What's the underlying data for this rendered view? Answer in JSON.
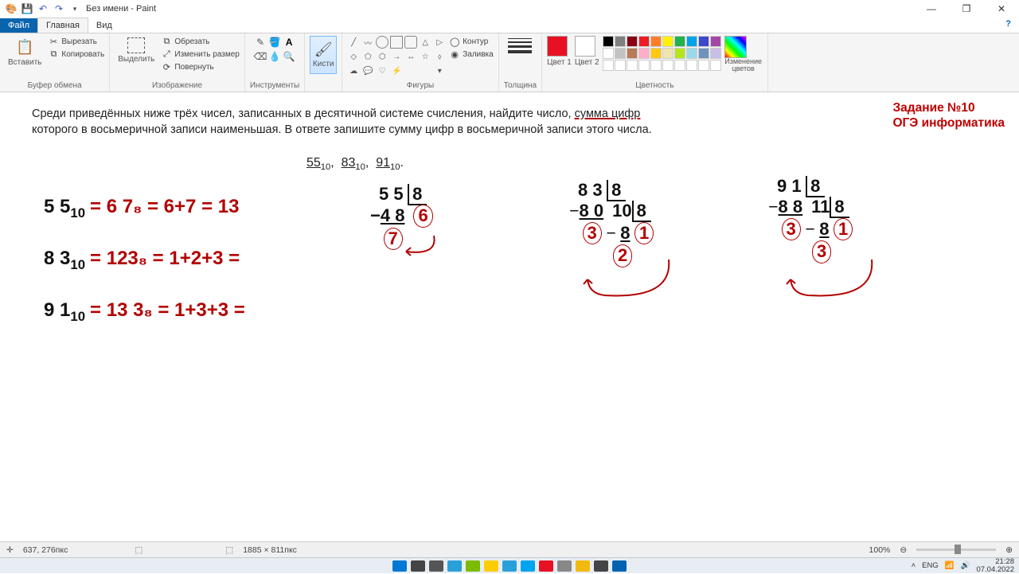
{
  "title": "Без имени - Paint",
  "tabs": {
    "file": "Файл",
    "home": "Главная",
    "view": "Вид"
  },
  "ribbon": {
    "clipboard": {
      "paste": "Вставить",
      "cut": "Вырезать",
      "copy": "Копировать",
      "label": "Буфер обмена"
    },
    "image": {
      "select": "Выделить",
      "crop": "Обрезать",
      "resize": "Изменить размер",
      "rotate": "Повернуть",
      "label": "Изображение"
    },
    "tools": {
      "label": "Инструменты"
    },
    "brushes": {
      "btn": "Кисти"
    },
    "shapes": {
      "outline": "Контур",
      "fill": "Заливка",
      "label": "Фигуры"
    },
    "size": {
      "label": "Толщина"
    },
    "colors": {
      "c1": "Цвет 1",
      "c2": "Цвет 2",
      "edit": "Изменение цветов",
      "label": "Цветность"
    },
    "color1_hex": "#e81123",
    "color2_hex": "#ffffff",
    "palette_row1": [
      "#000000",
      "#7f7f7f",
      "#880015",
      "#ed1c24",
      "#ff7f27",
      "#fff200",
      "#22b14c",
      "#00a2e8",
      "#3f48cc",
      "#a349a4"
    ],
    "palette_row2": [
      "#ffffff",
      "#c3c3c3",
      "#b97a57",
      "#ffaec9",
      "#ffc90e",
      "#efe4b0",
      "#b5e61d",
      "#99d9ea",
      "#7092be",
      "#c8bfe7"
    ]
  },
  "canvas": {
    "task_title1": "Задание №10",
    "task_title2": "ОГЭ информатика",
    "problem_p1a": "Среди приведённых ниже трёх чисел, записанных в десятичной системе счисления, найдите число, ",
    "problem_p1b": "сумма цифр",
    "problem_p2": "которого в восьмеричной записи наименьшая. В ответе запишите сумму цифр в восьмеричной записи этого числа.",
    "numbers": "55₁₀,  83₁₀,  91₁₀.",
    "eq1_lhs": "5 5",
    "eq1_sub": "10",
    "eq1_rhs": "= 6 7₈ = 6+7 = 13",
    "eq2_lhs": "8 3",
    "eq2_sub": "10",
    "eq2_rhs": "= 123₈ = 1+2+3 =",
    "eq3_lhs": "9 1",
    "eq3_sub": "10",
    "eq3_rhs": "= 13 3₈ = 1+3+3 =",
    "div55": {
      "top": "5 5",
      "d": "8",
      "sub": "4 8",
      "q": "6",
      "r": "7"
    },
    "div83": {
      "top": "8 3",
      "d": "8",
      "sub": "8 0",
      "q1": "10",
      "d2": "8",
      "sub2": "8",
      "q2": "1",
      "r1": "3",
      "r2": "2"
    },
    "div91": {
      "top": "9 1",
      "d": "8",
      "sub": "8 8",
      "q1": "11",
      "d2": "8",
      "sub2": "8",
      "q2": "1",
      "r1": "3",
      "r2": "3"
    }
  },
  "status": {
    "pos_icon": "✛",
    "pos": "637, 276пкс",
    "size_icon": "⬚",
    "dims": "1885 × 811пкс",
    "zoom": "100%"
  },
  "taskbar": {
    "lang": "ENG",
    "time": "21:28",
    "date": "07.04.2022",
    "icons": [
      "#0078d4",
      "#444",
      "#555",
      "#2aa0da",
      "#7cbb00",
      "#ffcc00",
      "#2aa0da",
      "#00a4ef",
      "#e81123",
      "#888",
      "#f2b90f",
      "#444",
      "#0063b1"
    ]
  }
}
